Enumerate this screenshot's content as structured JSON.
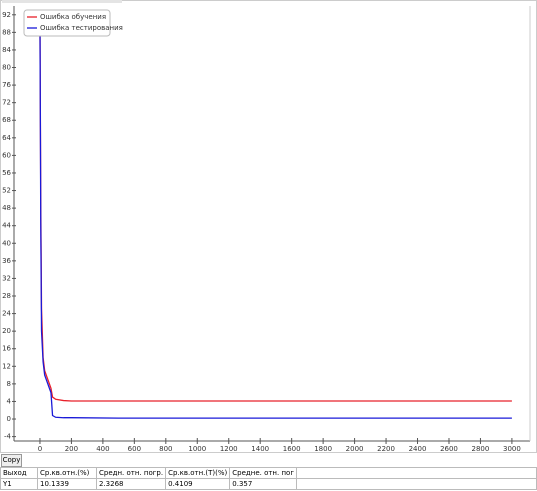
{
  "chart_data": {
    "type": "line",
    "x": [
      0,
      5,
      10,
      20,
      30,
      50,
      70,
      80,
      100,
      150,
      200,
      500,
      1000,
      2000,
      3000
    ],
    "series": [
      {
        "name": "Ошибка обучения",
        "color": "#e8202a",
        "values": [
          90,
          50,
          25,
          14,
          11,
          9,
          7,
          5,
          4.5,
          4.2,
          4.1,
          4.1,
          4.1,
          4.1,
          4.1
        ]
      },
      {
        "name": "Ошибка тестирования",
        "color": "#1a1ad8",
        "values": [
          92,
          45,
          20,
          13,
          10,
          8,
          6,
          0.8,
          0.4,
          0.3,
          0.3,
          0.2,
          0.2,
          0.2,
          0.2
        ]
      }
    ],
    "xlim": [
      -165,
      3115
    ],
    "ylim": [
      -5,
      94
    ],
    "xticks": [
      0,
      200,
      400,
      600,
      800,
      1000,
      1200,
      1400,
      1600,
      1800,
      2000,
      2200,
      2400,
      2600,
      2800,
      3000
    ],
    "yticks": [
      -4,
      0,
      4,
      8,
      12,
      16,
      20,
      24,
      28,
      32,
      36,
      40,
      44,
      48,
      52,
      56,
      60,
      64,
      68,
      72,
      76,
      80,
      84,
      88,
      92
    ],
    "legend": "top-left"
  },
  "button": {
    "label": "Copy"
  },
  "table": {
    "header": [
      "Выход",
      "Ср.кв.отн.(%)",
      "Средн. отн. погр.",
      "Ср.кв.отн.(Т)(%)",
      "Средне. отн. пог"
    ],
    "rows": [
      [
        "Y1",
        "10.1339",
        "2.3268",
        "0.4109",
        "0.357"
      ]
    ]
  }
}
